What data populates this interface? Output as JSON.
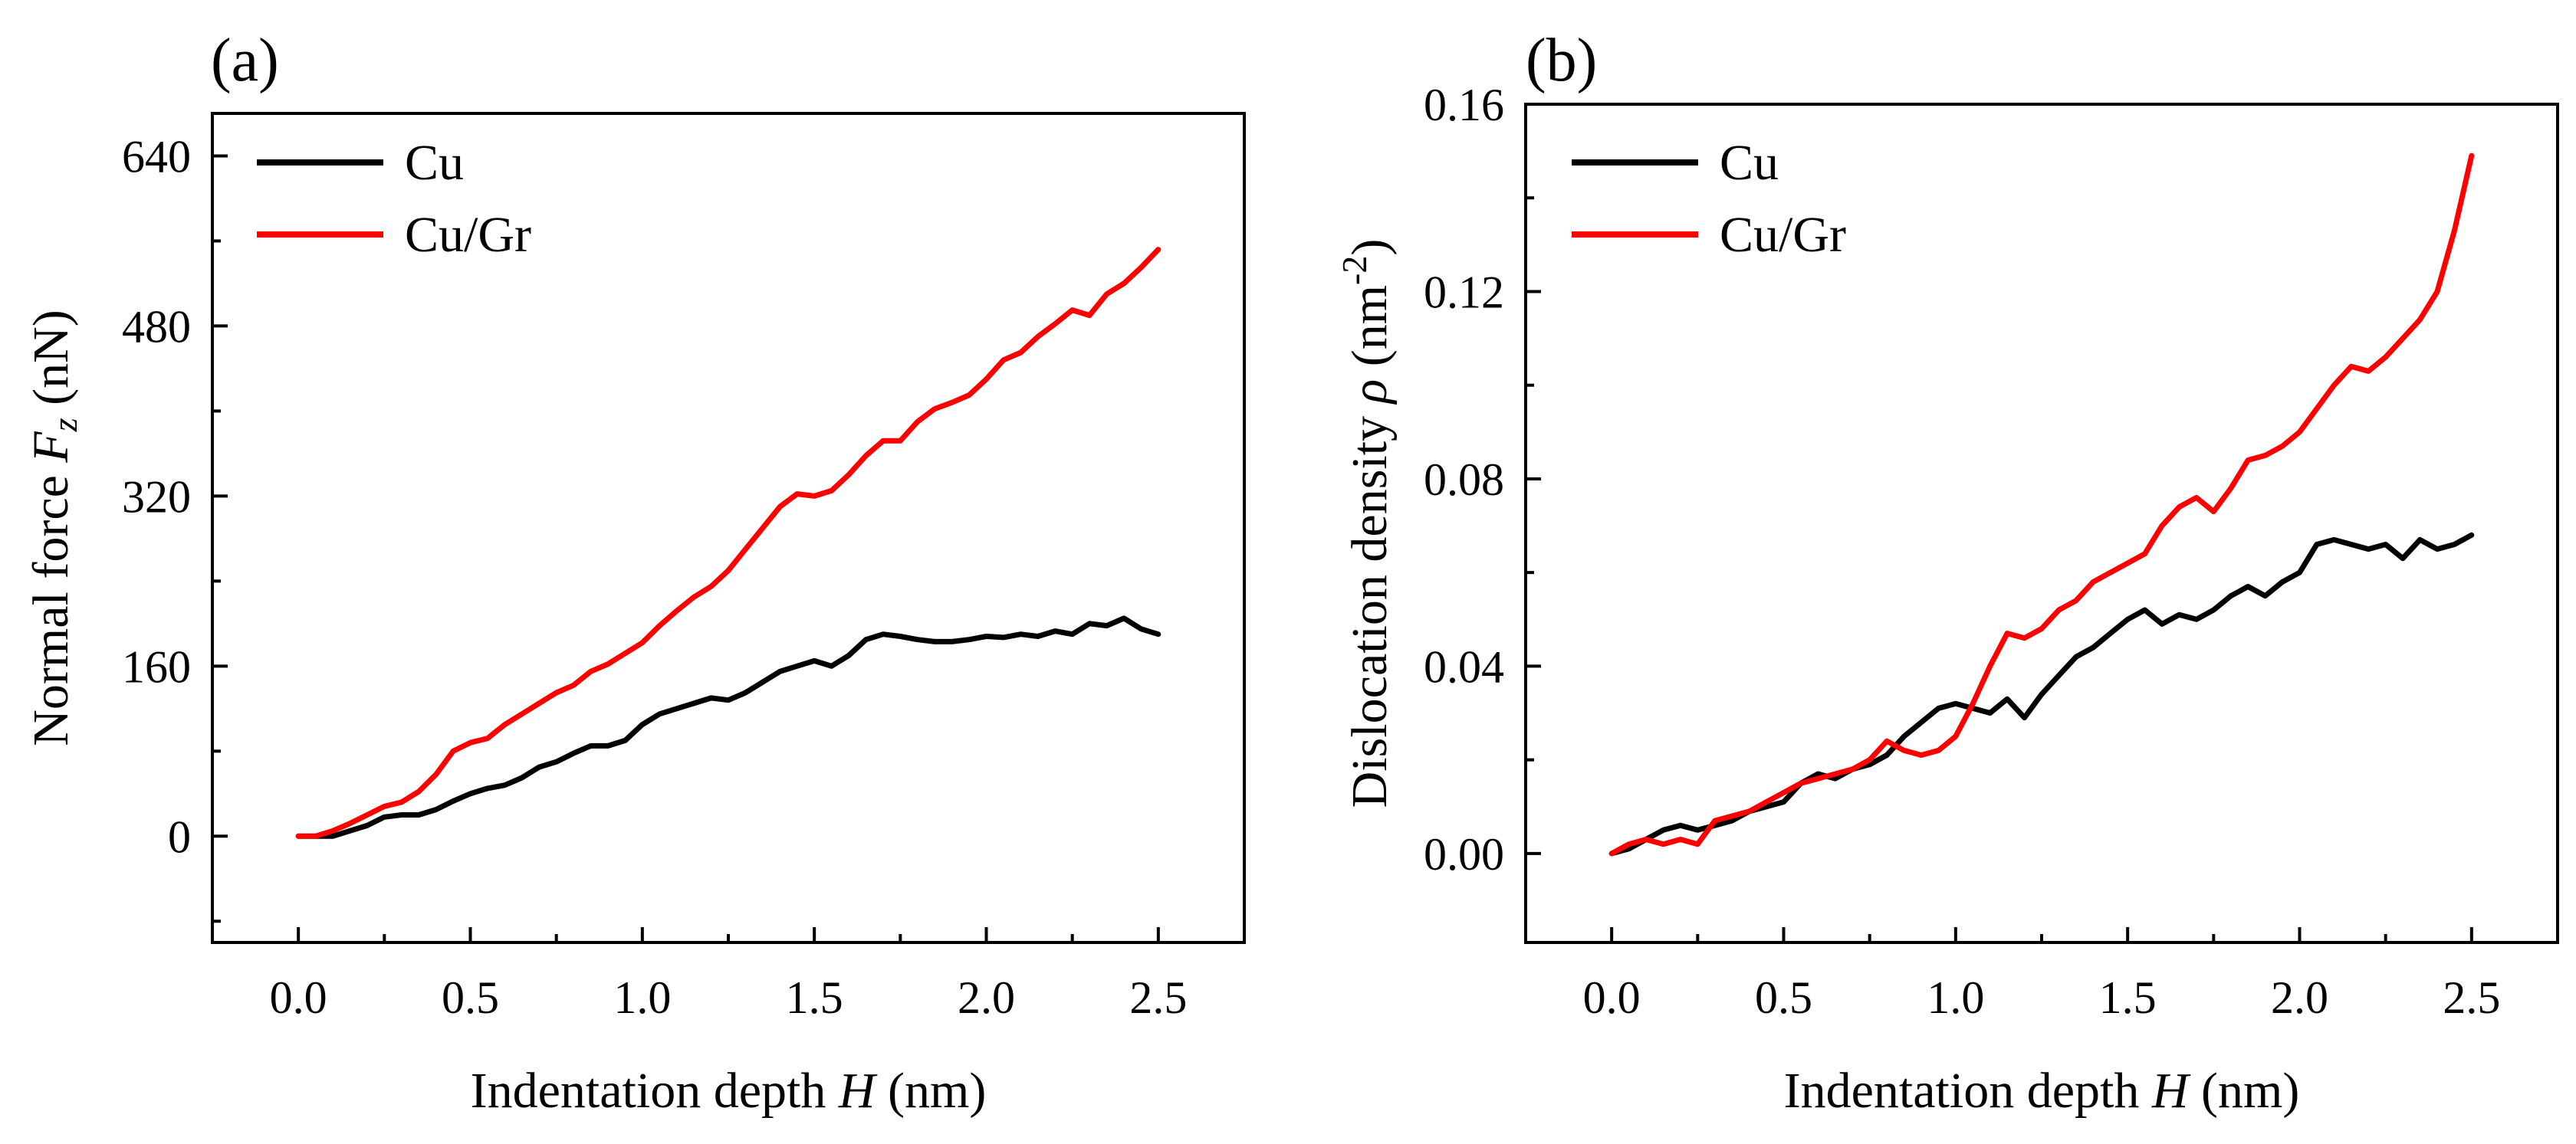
{
  "chart_data": [
    {
      "type": "line",
      "panel_label": "(a)",
      "xlabel_prefix": "Indentation depth ",
      "xlabel_var": "H",
      "xlabel_suffix": " (nm)",
      "ylabel_prefix": "Normal force ",
      "ylabel_var": "F",
      "ylabel_sub": "z",
      "ylabel_suffix": " (nN)",
      "xlim": [
        -0.25,
        2.75
      ],
      "ylim": [
        -100,
        680
      ],
      "xticks": [
        0.0,
        0.5,
        1.0,
        1.5,
        2.0,
        2.5
      ],
      "xtick_labels": [
        "0.0",
        "0.5",
        "1.0",
        "1.5",
        "2.0",
        "2.5"
      ],
      "yticks": [
        0,
        160,
        320,
        480,
        640
      ],
      "ytick_labels": [
        "0",
        "160",
        "320",
        "480",
        "640"
      ],
      "legend_position": "top-left",
      "series": [
        {
          "name": "Cu",
          "color": "#000000",
          "x": [
            0.0,
            0.1,
            0.15,
            0.2,
            0.25,
            0.3,
            0.35,
            0.4,
            0.45,
            0.5,
            0.55,
            0.6,
            0.65,
            0.7,
            0.75,
            0.8,
            0.85,
            0.9,
            0.95,
            1.0,
            1.05,
            1.1,
            1.15,
            1.2,
            1.25,
            1.3,
            1.35,
            1.4,
            1.45,
            1.5,
            1.55,
            1.6,
            1.65,
            1.7,
            1.75,
            1.8,
            1.85,
            1.9,
            1.95,
            2.0,
            2.05,
            2.1,
            2.15,
            2.2,
            2.25,
            2.3,
            2.35,
            2.4,
            2.45,
            2.5
          ],
          "values": [
            0,
            0,
            5,
            10,
            18,
            20,
            20,
            25,
            33,
            40,
            45,
            48,
            55,
            65,
            70,
            78,
            85,
            85,
            90,
            105,
            115,
            120,
            125,
            130,
            128,
            135,
            145,
            155,
            160,
            165,
            160,
            170,
            185,
            190,
            188,
            185,
            183,
            183,
            185,
            188,
            187,
            190,
            188,
            193,
            190,
            200,
            198,
            205,
            195,
            190
          ]
        },
        {
          "name": "Cu/Gr",
          "color": "#ff0000",
          "x": [
            0.0,
            0.05,
            0.1,
            0.15,
            0.2,
            0.25,
            0.3,
            0.35,
            0.4,
            0.45,
            0.5,
            0.55,
            0.6,
            0.65,
            0.7,
            0.75,
            0.8,
            0.85,
            0.9,
            0.95,
            1.0,
            1.05,
            1.1,
            1.15,
            1.2,
            1.25,
            1.3,
            1.35,
            1.4,
            1.45,
            1.5,
            1.55,
            1.6,
            1.65,
            1.7,
            1.75,
            1.8,
            1.85,
            1.9,
            1.95,
            2.0,
            2.05,
            2.1,
            2.15,
            2.2,
            2.25,
            2.3,
            2.35,
            2.4,
            2.45,
            2.5
          ],
          "values": [
            0,
            0,
            5,
            12,
            20,
            28,
            32,
            42,
            58,
            80,
            88,
            92,
            105,
            115,
            125,
            135,
            142,
            155,
            162,
            172,
            182,
            198,
            212,
            225,
            235,
            250,
            270,
            290,
            310,
            322,
            320,
            325,
            340,
            358,
            372,
            372,
            390,
            402,
            408,
            415,
            430,
            448,
            455,
            470,
            482,
            495,
            490,
            510,
            520,
            535,
            552
          ]
        }
      ]
    },
    {
      "type": "line",
      "panel_label": "(b)",
      "xlabel_prefix": "Indentation depth ",
      "xlabel_var": "H",
      "xlabel_suffix": " (nm)",
      "ylabel_prefix": "Dislocation density ",
      "ylabel_var": "ρ",
      "ylabel_unit": " (nm",
      "ylabel_sup": "-2",
      "ylabel_close": ")",
      "xlim": [
        -0.25,
        2.75
      ],
      "ylim": [
        -0.019,
        0.16
      ],
      "xticks": [
        0.0,
        0.5,
        1.0,
        1.5,
        2.0,
        2.5
      ],
      "xtick_labels": [
        "0.0",
        "0.5",
        "1.0",
        "1.5",
        "2.0",
        "2.5"
      ],
      "yticks": [
        0.0,
        0.04,
        0.08,
        0.12,
        0.16
      ],
      "ytick_labels": [
        "0.00",
        "0.04",
        "0.08",
        "0.12",
        "0.16"
      ],
      "legend_position": "top-left",
      "series": [
        {
          "name": "Cu",
          "color": "#000000",
          "x": [
            0.0,
            0.05,
            0.1,
            0.15,
            0.2,
            0.25,
            0.3,
            0.35,
            0.4,
            0.45,
            0.5,
            0.55,
            0.6,
            0.65,
            0.7,
            0.75,
            0.8,
            0.85,
            0.9,
            0.95,
            1.0,
            1.05,
            1.1,
            1.15,
            1.2,
            1.25,
            1.3,
            1.35,
            1.4,
            1.45,
            1.5,
            1.55,
            1.6,
            1.65,
            1.7,
            1.75,
            1.8,
            1.85,
            1.9,
            1.95,
            2.0,
            2.05,
            2.1,
            2.15,
            2.2,
            2.25,
            2.3,
            2.35,
            2.4,
            2.45,
            2.5
          ],
          "values": [
            0.0,
            0.001,
            0.003,
            0.005,
            0.006,
            0.005,
            0.006,
            0.007,
            0.009,
            0.01,
            0.011,
            0.015,
            0.017,
            0.016,
            0.018,
            0.019,
            0.021,
            0.025,
            0.028,
            0.031,
            0.032,
            0.031,
            0.03,
            0.033,
            0.029,
            0.034,
            0.038,
            0.042,
            0.044,
            0.047,
            0.05,
            0.052,
            0.049,
            0.051,
            0.05,
            0.052,
            0.055,
            0.057,
            0.055,
            0.058,
            0.06,
            0.066,
            0.067,
            0.066,
            0.065,
            0.066,
            0.063,
            0.067,
            0.065,
            0.066,
            0.068
          ]
        },
        {
          "name": "Cu/Gr",
          "color": "#ff0000",
          "x": [
            0.0,
            0.05,
            0.1,
            0.15,
            0.2,
            0.25,
            0.3,
            0.35,
            0.4,
            0.45,
            0.5,
            0.55,
            0.6,
            0.65,
            0.7,
            0.75,
            0.8,
            0.85,
            0.9,
            0.95,
            1.0,
            1.05,
            1.1,
            1.15,
            1.2,
            1.25,
            1.3,
            1.35,
            1.4,
            1.45,
            1.5,
            1.55,
            1.6,
            1.65,
            1.7,
            1.75,
            1.8,
            1.85,
            1.9,
            1.95,
            2.0,
            2.05,
            2.1,
            2.15,
            2.2,
            2.25,
            2.3,
            2.35,
            2.4,
            2.45,
            2.5
          ],
          "values": [
            0.0,
            0.002,
            0.003,
            0.002,
            0.003,
            0.002,
            0.007,
            0.008,
            0.009,
            0.011,
            0.013,
            0.015,
            0.016,
            0.017,
            0.018,
            0.02,
            0.024,
            0.022,
            0.021,
            0.022,
            0.025,
            0.032,
            0.04,
            0.047,
            0.046,
            0.048,
            0.052,
            0.054,
            0.058,
            0.06,
            0.062,
            0.064,
            0.07,
            0.074,
            0.076,
            0.073,
            0.078,
            0.084,
            0.085,
            0.087,
            0.09,
            0.095,
            0.1,
            0.104,
            0.103,
            0.106,
            0.11,
            0.114,
            0.12,
            0.133,
            0.149
          ]
        }
      ]
    }
  ]
}
